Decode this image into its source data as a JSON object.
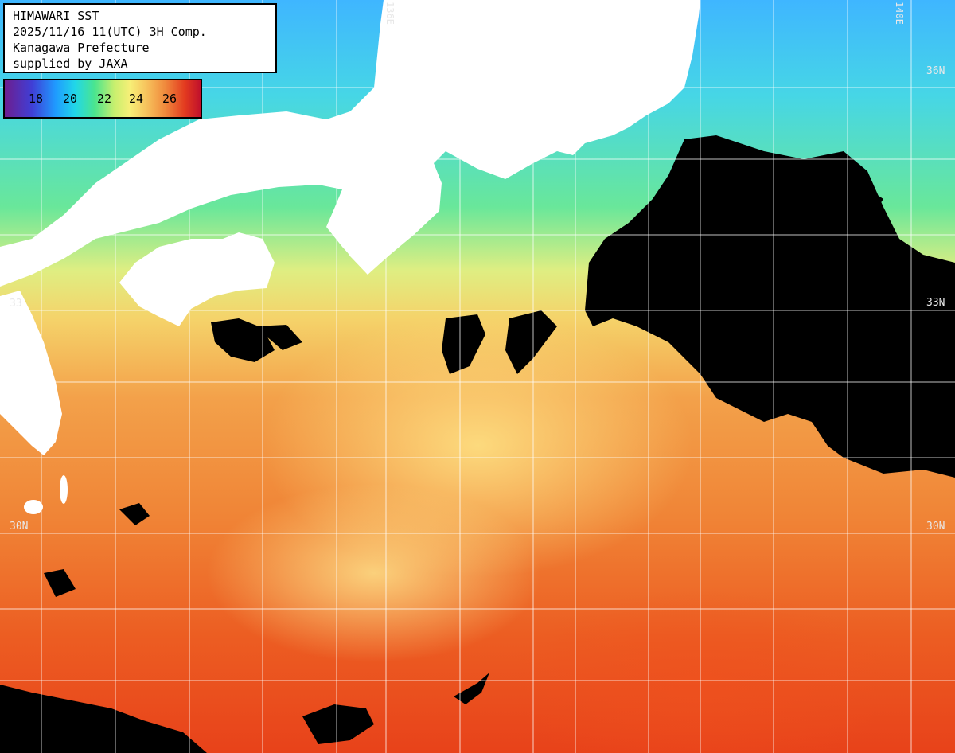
{
  "info_box": {
    "line1": "HIMAWARI SST",
    "line2": "2025/11/16 11(UTC) 3H Comp.",
    "line3": "Kanagawa Prefecture",
    "line4": "supplied by JAXA"
  },
  "legend": {
    "ticks": [
      "18",
      "20",
      "22",
      "24",
      "26"
    ],
    "colors": [
      "#6d1e8f",
      "#3f3fd6",
      "#1f9bff",
      "#21d7e8",
      "#4be58e",
      "#c8ef6e",
      "#f7ef77",
      "#f7c55e",
      "#f0893c",
      "#e33a1f",
      "#c0102c"
    ]
  },
  "grid_labels": {
    "lat_36_right": "36N",
    "lat_33_left": "33",
    "lat_33_right": "33N",
    "lat_30_left": "30N",
    "lat_30_right": "30N",
    "lon_136_top": "136E",
    "lon_140_top": "140E"
  },
  "colors": {
    "land": "#ffffff",
    "no_data": "#000000",
    "grid": "#ffffff"
  }
}
